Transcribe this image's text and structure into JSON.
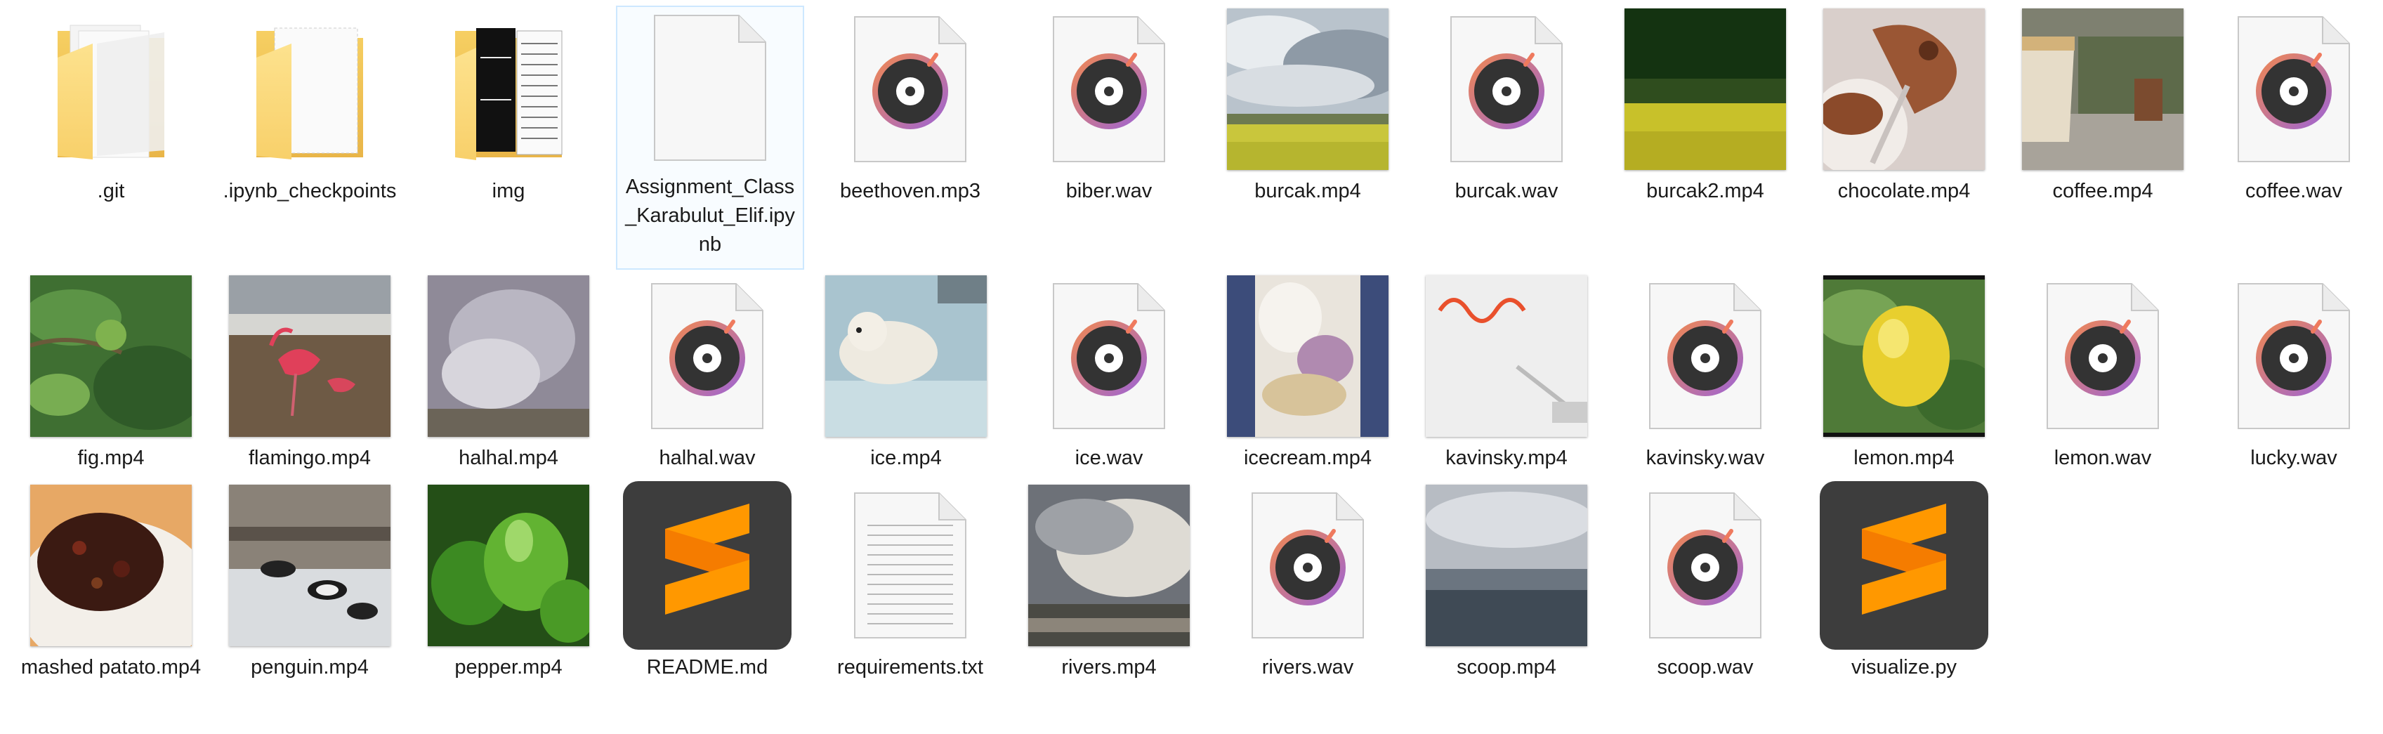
{
  "window": {
    "view": "Large icons",
    "colors": {
      "folder": "#f8d775",
      "folder_dark": "#e8b84a",
      "music_accent": "#ee7e5b",
      "music_purple": "#a46cd0",
      "sublime_bg": "#3d3d3d",
      "sublime_orange": "#ff9800",
      "selection_border": "#cde8ff"
    }
  },
  "files": [
    {
      "name": ".git",
      "icon": "folder-icon"
    },
    {
      "name": ".ipynb_checkpoints",
      "icon": "folder-icon"
    },
    {
      "name": "img",
      "icon": "folder-with-documents-icon"
    },
    {
      "name": "Assignment_Class_Karabulut_Elif.ipynb",
      "icon": "blank-document-icon"
    },
    {
      "name": "beethoven.mp3",
      "icon": "music-file-icon"
    },
    {
      "name": "biber.wav",
      "icon": "music-file-icon"
    },
    {
      "name": "burcak.mp4",
      "icon": "video-thumbnail-field-sky"
    },
    {
      "name": "burcak.wav",
      "icon": "music-file-icon"
    },
    {
      "name": "burcak2.mp4",
      "icon": "video-thumbnail-yellow-field"
    },
    {
      "name": "chocolate.mp4",
      "icon": "video-thumbnail-chocolate"
    },
    {
      "name": "coffee.mp4",
      "icon": "video-thumbnail-coffee"
    },
    {
      "name": "coffee.wav",
      "icon": "music-file-icon"
    },
    {
      "name": "fig.mp4",
      "icon": "video-thumbnail-fig"
    },
    {
      "name": "flamingo.mp4",
      "icon": "video-thumbnail-flamingo"
    },
    {
      "name": "halhal.mp4",
      "icon": "video-thumbnail-smoke"
    },
    {
      "name": "halhal.wav",
      "icon": "music-file-icon"
    },
    {
      "name": "ice.mp4",
      "icon": "video-thumbnail-polar-bear"
    },
    {
      "name": "ice.wav",
      "icon": "music-file-icon"
    },
    {
      "name": "icecream.mp4",
      "icon": "video-thumbnail-icecream"
    },
    {
      "name": "kavinsky.mp4",
      "icon": "video-thumbnail-kavinsky"
    },
    {
      "name": "kavinsky.wav",
      "icon": "music-file-icon"
    },
    {
      "name": "lemon.mp4",
      "icon": "video-thumbnail-lemon"
    },
    {
      "name": "lemon.wav",
      "icon": "music-file-icon"
    },
    {
      "name": "lucky.wav",
      "icon": "music-file-icon"
    },
    {
      "name": "mashed patato.mp4",
      "icon": "video-thumbnail-mashed"
    },
    {
      "name": "penguin.mp4",
      "icon": "video-thumbnail-penguin"
    },
    {
      "name": "pepper.mp4",
      "icon": "video-thumbnail-pepper"
    },
    {
      "name": "README.md",
      "icon": "sublime-text-icon"
    },
    {
      "name": "requirements.txt",
      "icon": "text-document-icon"
    },
    {
      "name": "rivers.mp4",
      "icon": "video-thumbnail-rivers"
    },
    {
      "name": "rivers.wav",
      "icon": "music-file-icon"
    },
    {
      "name": "scoop.mp4",
      "icon": "video-thumbnail-scoop"
    },
    {
      "name": "scoop.wav",
      "icon": "music-file-icon"
    },
    {
      "name": "visualize.py",
      "icon": "sublime-text-icon"
    }
  ]
}
